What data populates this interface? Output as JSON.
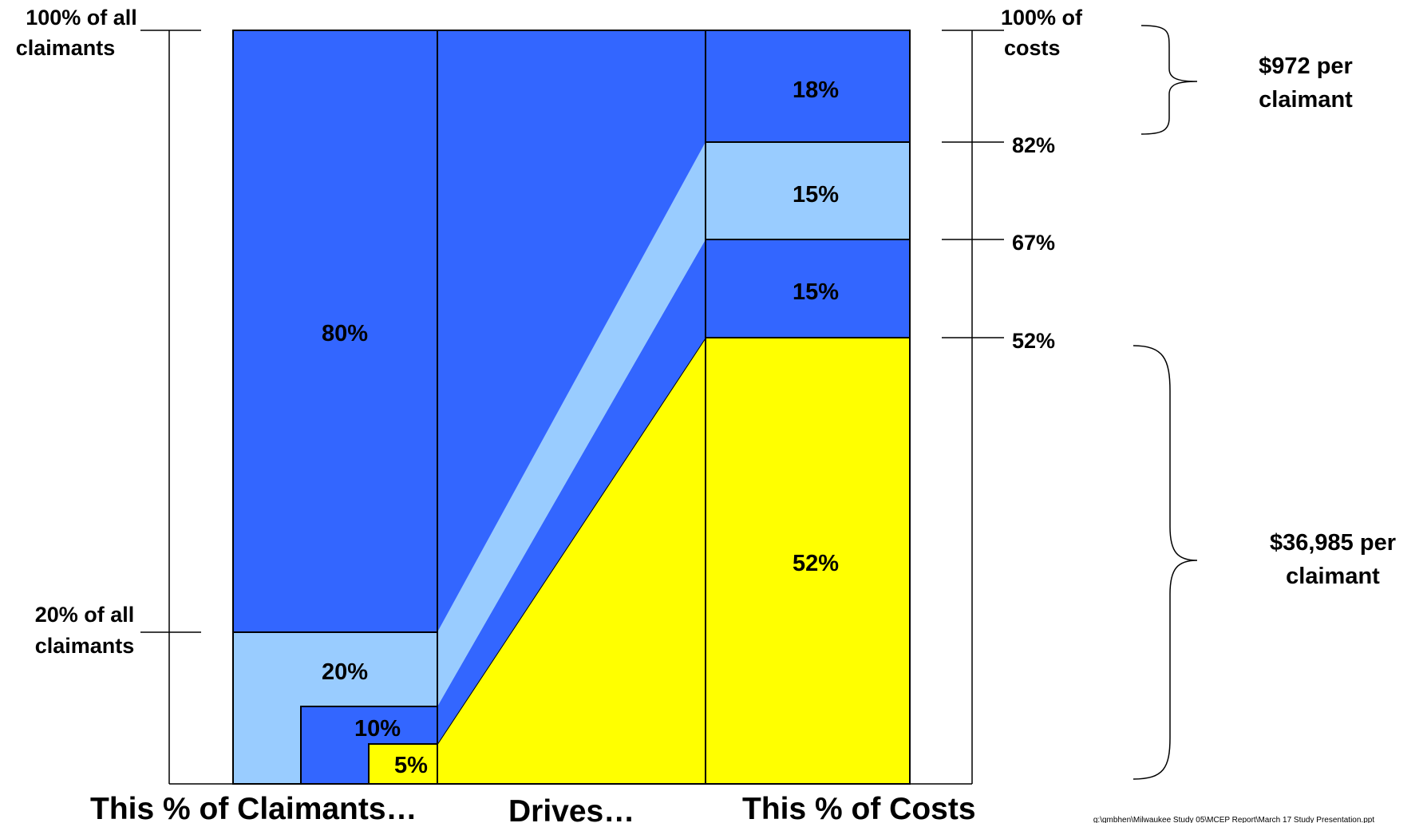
{
  "colors": {
    "dark_blue": "#3366ff",
    "light_blue": "#99ccff",
    "yellow": "#ffff00",
    "outline": "#000000"
  },
  "chart_data": {
    "type": "funnel",
    "left_column": {
      "title": "This % of Claimants…",
      "segments": [
        {
          "label": "80%",
          "value": 80,
          "color_key": "dark_blue"
        },
        {
          "label": "20%",
          "value": 20,
          "color_key": "light_blue"
        },
        {
          "label": "10%",
          "value": 10,
          "color_key": "dark_blue"
        },
        {
          "label": "5%",
          "value": 5,
          "color_key": "yellow"
        }
      ]
    },
    "middle": {
      "title": "Drives…"
    },
    "right_column": {
      "title": "This % of Costs",
      "segments": [
        {
          "label": "18%",
          "value": 18,
          "color_key": "dark_blue"
        },
        {
          "label": "15%",
          "value": 15,
          "color_key": "light_blue"
        },
        {
          "label": "15%",
          "value": 15,
          "color_key": "dark_blue"
        },
        {
          "label": "52%",
          "value": 52,
          "color_key": "yellow"
        }
      ]
    },
    "left_markers": [
      {
        "line1": "100% of all",
        "line2": "claimants",
        "value": 100
      },
      {
        "line1": "20% of all",
        "line2": "claimants",
        "value": 20
      }
    ],
    "right_markers": [
      {
        "line1": "100% of",
        "line2": "costs",
        "value": 100
      },
      {
        "line1": "82%",
        "line2": "",
        "value": 82
      },
      {
        "line1": "67%",
        "line2": "",
        "value": 67
      },
      {
        "line1": "52%",
        "line2": "",
        "value": 52
      }
    ],
    "brackets": [
      {
        "line1": "$972 per",
        "line2": "claimant"
      },
      {
        "line1": "$36,985 per",
        "line2": "claimant"
      }
    ],
    "footer_path": "g:\\gmbhen\\Milwaukee Study 05\\MCEP Report\\March 17 Study Presentation.ppt"
  }
}
